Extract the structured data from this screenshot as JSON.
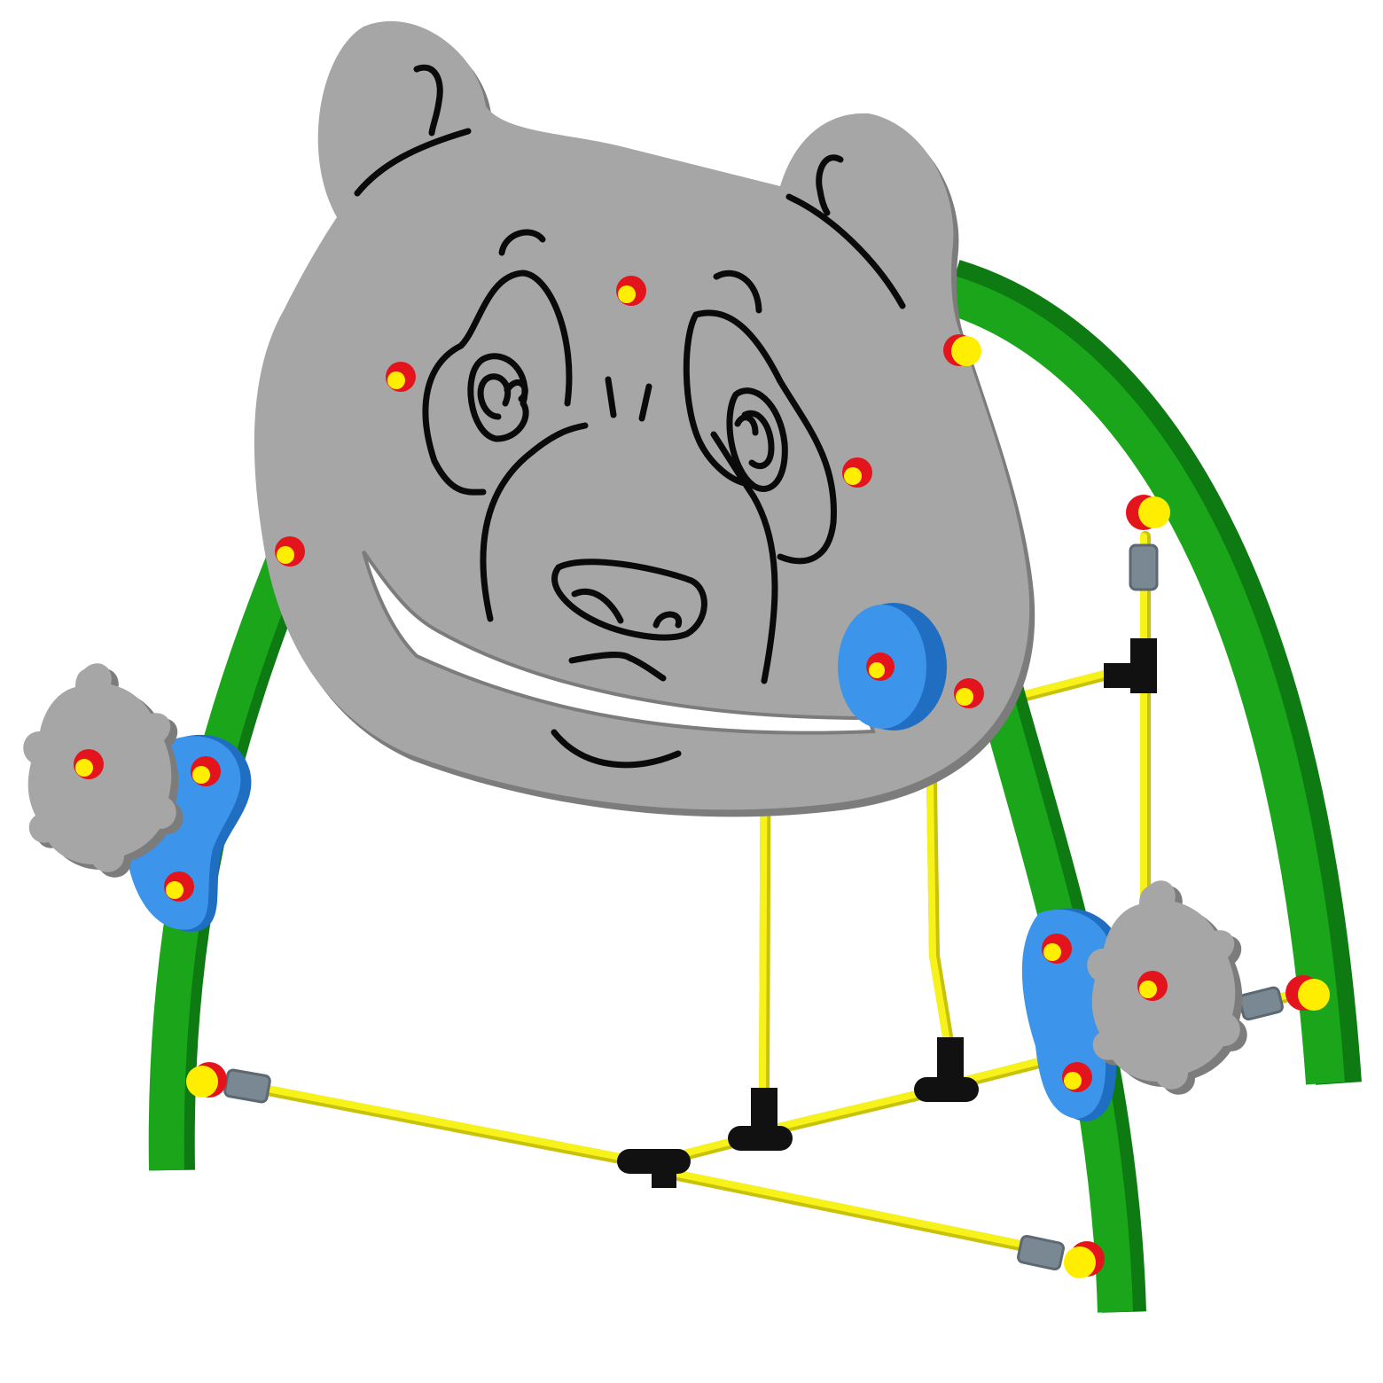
{
  "colors": {
    "background": "#ffffff",
    "arch_green": "#1aa51a",
    "arch_green_dark": "#0d7a12",
    "rod_yellow": "#f7f21a",
    "rod_yellow_shade": "#c9c20a",
    "panel_grey": "#a6a6a6",
    "panel_grey_dark": "#7c7c7c",
    "line_black": "#0a0a0a",
    "bolt_red": "#e3141c",
    "bolt_yellow": "#ffee00",
    "disc_blue": "#3c95ea",
    "disc_blue_dark": "#1f6ec2",
    "connector_black": "#111111",
    "sleeve_grey": "#7a8894"
  },
  "object": {
    "subject": "bear-face-play-panel",
    "icons": [
      "bear-face-panel",
      "arch-frame",
      "spinner-gear",
      "spinner-disc",
      "bolt",
      "tube-connector"
    ]
  }
}
